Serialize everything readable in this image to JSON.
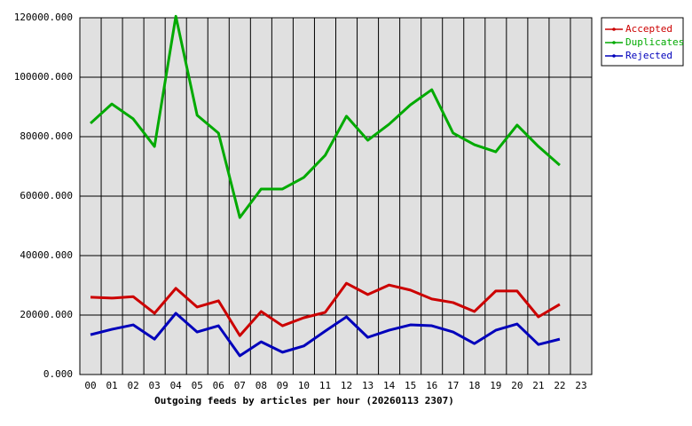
{
  "chart_data": {
    "type": "line",
    "title": "Outgoing feeds by articles per hour (20260113 2307)",
    "categories": [
      "00",
      "01",
      "02",
      "03",
      "04",
      "05",
      "06",
      "07",
      "08",
      "09",
      "10",
      "11",
      "12",
      "13",
      "14",
      "15",
      "16",
      "17",
      "18",
      "19",
      "20",
      "21",
      "22",
      "23"
    ],
    "series": [
      {
        "name": "Accepted",
        "color": "#cc0000",
        "values": [
          26000,
          25700,
          26200,
          20600,
          29000,
          22700,
          24800,
          13100,
          21200,
          16400,
          19100,
          20900,
          30700,
          26900,
          30100,
          28400,
          25400,
          24200,
          21200,
          28100,
          28100,
          19400,
          23600,
          null
        ]
      },
      {
        "name": "Duplicates",
        "color": "#00aa00",
        "values": [
          84500,
          91000,
          86000,
          76700,
          120500,
          87200,
          81200,
          52800,
          62400,
          62400,
          66300,
          73700,
          86900,
          78800,
          84200,
          90700,
          95800,
          81200,
          77300,
          74900,
          83900,
          76700,
          70400,
          null
        ]
      },
      {
        "name": "Rejected",
        "color": "#0000bb",
        "values": [
          13400,
          15200,
          16700,
          11900,
          20600,
          14300,
          16400,
          6300,
          11000,
          7500,
          9600,
          14600,
          19400,
          12500,
          14900,
          16700,
          16400,
          14300,
          10400,
          14900,
          17000,
          10100,
          11900,
          null
        ]
      }
    ],
    "ylim": [
      0,
      120000
    ],
    "yticks": [
      {
        "value": 0,
        "label": "0.000"
      },
      {
        "value": 20000,
        "label": "20000.000"
      },
      {
        "value": 40000,
        "label": "40000.000"
      },
      {
        "value": 60000,
        "label": "60000.000"
      },
      {
        "value": 80000,
        "label": "80000.000"
      },
      {
        "value": 100000,
        "label": "100000.000"
      },
      {
        "value": 120000,
        "label": "120000.000"
      }
    ],
    "grid": true,
    "legend": "right"
  }
}
